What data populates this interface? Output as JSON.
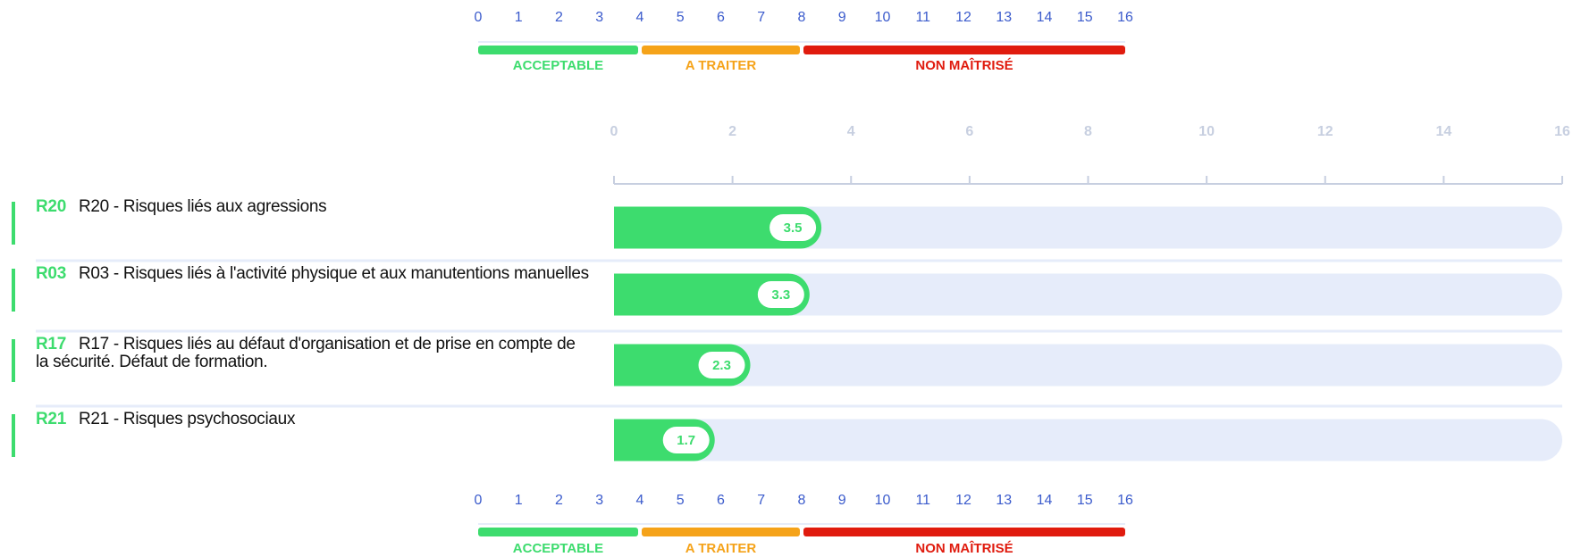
{
  "chart_data": {
    "type": "bar",
    "scale": {
      "ticks": [
        0,
        1,
        2,
        3,
        4,
        5,
        6,
        7,
        8,
        9,
        10,
        11,
        12,
        13,
        14,
        15,
        16
      ],
      "bands": [
        {
          "label": "ACCEPTABLE",
          "from": 0,
          "to": 4,
          "color": "#3ddc6e"
        },
        {
          "label": "A TRAITER",
          "from": 4,
          "to": 8,
          "color": "#f5a31a"
        },
        {
          "label": "NON MAÎTRISÉ",
          "from": 8,
          "to": 16,
          "color": "#e01b0e"
        }
      ]
    },
    "codes": [
      "R20",
      "R03",
      "R17",
      "R21"
    ],
    "categories": [
      "R20 - Risques liés aux agressions",
      "R03 - Risques liés à l'activité physique et aux manutentions manuelles",
      "R17 - Risques liés au défaut d'organisation et de prise en compte de la sécurité. Défaut de formation.",
      "R21 - Risques psychosociaux"
    ],
    "values": [
      3.5,
      3.3,
      2.3,
      1.7
    ],
    "color": "#3ddc6e",
    "xlim": [
      0,
      16
    ],
    "xticks": [
      0,
      2,
      4,
      6,
      8,
      10,
      12,
      14,
      16
    ]
  }
}
